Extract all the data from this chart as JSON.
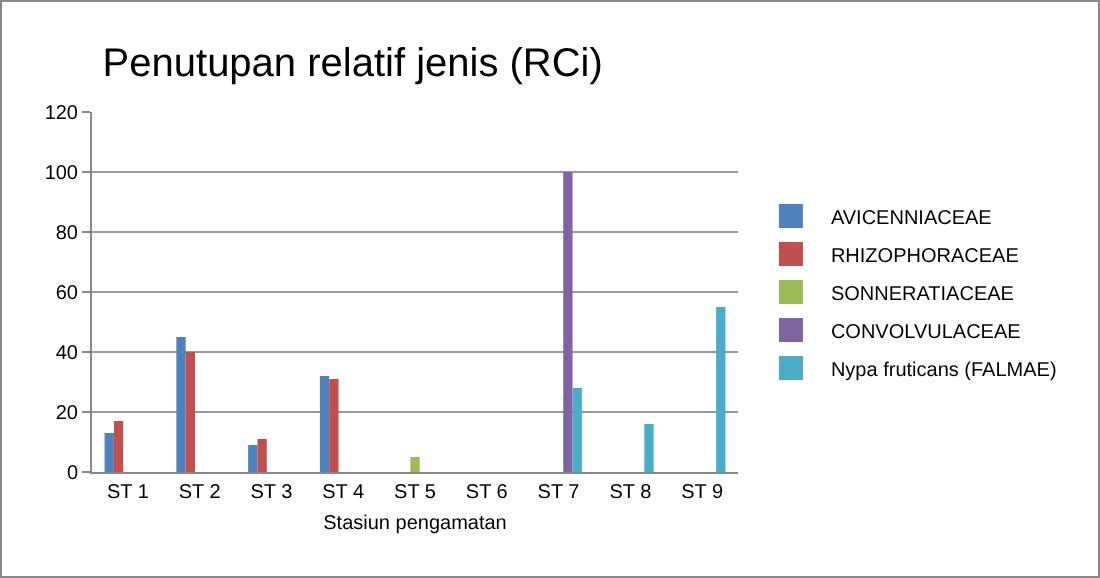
{
  "chart_data": {
    "type": "bar",
    "title": "Penutupan relatif jenis (RCi)",
    "xlabel": "Stasiun pengamatan",
    "categories": [
      "ST 1",
      "ST 2",
      "ST 3",
      "ST 4",
      "ST 5",
      "ST 6",
      "ST 7",
      "ST 8",
      "ST 9"
    ],
    "series": [
      {
        "name": "AVICENNIACEAE",
        "color": "#4f81bd",
        "values": [
          13,
          45,
          9,
          32,
          0,
          0,
          0,
          0,
          0
        ]
      },
      {
        "name": "RHIZOPHORACEAE",
        "color": "#c0504d",
        "values": [
          17,
          40,
          11,
          31,
          0,
          0,
          0,
          0,
          0
        ]
      },
      {
        "name": "SONNERATIACEAE",
        "color": "#9bbb59",
        "values": [
          0,
          0,
          0,
          0,
          5,
          0,
          0,
          0,
          0
        ]
      },
      {
        "name": "CONVOLVULACEAE",
        "color": "#8064a2",
        "values": [
          0,
          0,
          0,
          0,
          0,
          0,
          100,
          0,
          0
        ]
      },
      {
        "name": "Nypa fruticans (FALMAE)",
        "color": "#4bacc6",
        "values": [
          0,
          0,
          0,
          0,
          0,
          0,
          28,
          16,
          55
        ]
      }
    ],
    "ylim": [
      0,
      120
    ],
    "yticks": [
      0,
      20,
      40,
      60,
      80,
      100,
      120
    ],
    "grid": "y",
    "legend": "right"
  }
}
